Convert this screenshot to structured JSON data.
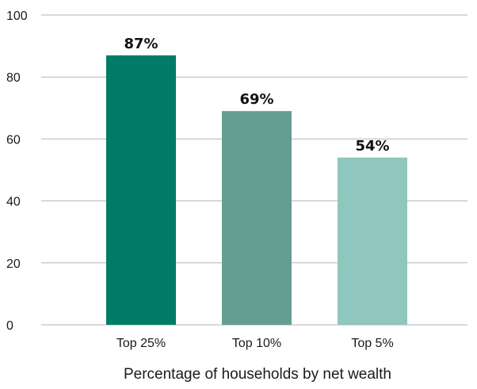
{
  "chart_data": {
    "type": "bar",
    "title": "",
    "xlabel": "Percentage of households by net wealth",
    "ylabel": "",
    "categories": [
      "Top 25%",
      "Top 10%",
      "Top 5%"
    ],
    "values": [
      87,
      69,
      54
    ],
    "data_labels": [
      "87%",
      "69%",
      "54%"
    ],
    "bar_colors": [
      "#007c66",
      "#649e92",
      "#8fc6bd"
    ],
    "ylim": [
      0,
      100
    ],
    "yticks": [
      0,
      20,
      40,
      60,
      80,
      100
    ],
    "grid": true,
    "legend": "none"
  }
}
